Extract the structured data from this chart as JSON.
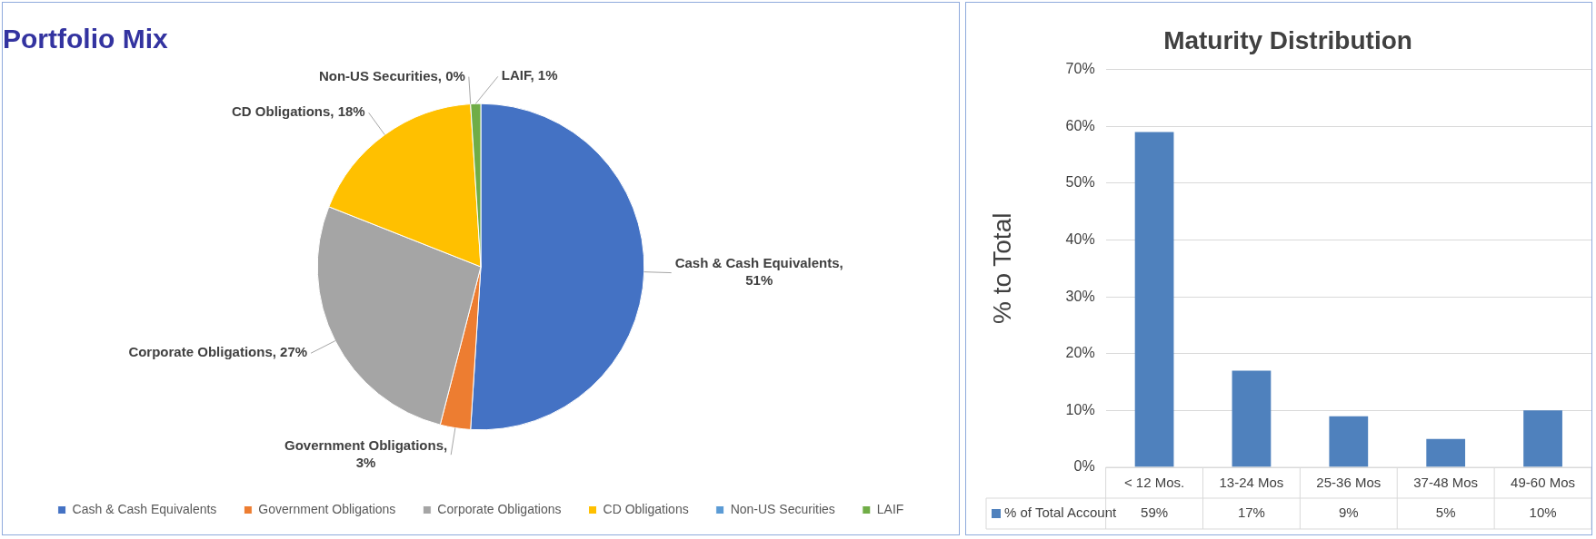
{
  "chart_data": [
    {
      "type": "pie",
      "title": "Portfolio Mix",
      "categories": [
        "Cash & Cash Equivalents",
        "Government Obligations",
        "Corporate Obligations",
        "CD Obligations",
        "Non-US Securities",
        "LAIF"
      ],
      "values": [
        51,
        3,
        27,
        18,
        0,
        1
      ],
      "colors": [
        "#4472c4",
        "#ed7d31",
        "#a5a5a5",
        "#ffc000",
        "#5b9bd5",
        "#70ad47"
      ],
      "value_labels": [
        "Cash & Cash Equivalents, 51%",
        "Government Obligations, 3%",
        "Corporate Obligations, 27%",
        "CD Obligations, 18%",
        "Non-US Securities, 0%",
        "LAIF, 1%"
      ],
      "legend": "bottom"
    },
    {
      "type": "bar",
      "title": "Maturity Distribution",
      "ylabel": "% to Total",
      "categories": [
        "< 12 Mos.",
        "13-24 Mos",
        "25-36 Mos",
        "37-48 Mos",
        "49-60 Mos"
      ],
      "series": [
        {
          "name": "% of Total Account",
          "color": "#4f81bd",
          "values": [
            59,
            17,
            9,
            5,
            10
          ],
          "value_labels": [
            "59%",
            "17%",
            "9%",
            "5%",
            "10%"
          ]
        }
      ],
      "ylim": [
        0,
        70
      ],
      "yticks": [
        {
          "value": 0,
          "label": "0%"
        },
        {
          "value": 10,
          "label": "10%"
        },
        {
          "value": 20,
          "label": "20%"
        },
        {
          "value": 30,
          "label": "30%"
        },
        {
          "value": 40,
          "label": "40%"
        },
        {
          "value": 50,
          "label": "50%"
        },
        {
          "value": 60,
          "label": "60%"
        },
        {
          "value": 70,
          "label": "70%"
        }
      ],
      "grid": "y",
      "legend": "bottom"
    }
  ]
}
